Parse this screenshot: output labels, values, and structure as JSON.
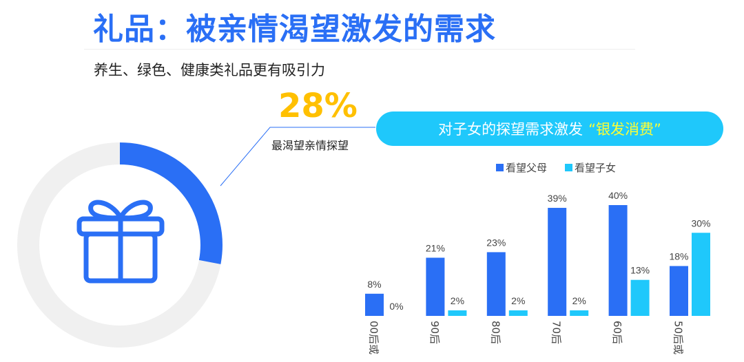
{
  "header": {
    "title": "礼品：被亲情渴望激发的需求",
    "subtitle": "养生、绿色、健康类礼品更有吸引力"
  },
  "donut": {
    "value_percent": 28,
    "value_label": "28%",
    "caption": "最渴望亲情探望",
    "icon": "gift-icon",
    "colors": {
      "fill": "#2a6ff5",
      "track": "#f0f0f0",
      "value_text": "#ffc000"
    }
  },
  "banner": {
    "text": "对子女的探望需求激发",
    "highlight": "“银发消费”",
    "colors": {
      "background": "#1fc8fb",
      "highlight": "#ffff33"
    }
  },
  "chart_data": {
    "type": "bar",
    "categories": [
      "00后或",
      "90后",
      "80后",
      "70后",
      "60后",
      "50后或"
    ],
    "series": [
      {
        "name": "看望父母",
        "color": "#2a6ff5",
        "values": [
          8,
          21,
          23,
          39,
          40,
          18
        ],
        "labels": [
          "8%",
          "21%",
          "23%",
          "39%",
          "40%",
          "18%"
        ]
      },
      {
        "name": "看望子女",
        "color": "#1fc8fb",
        "values": [
          0,
          2,
          2,
          2,
          13,
          30
        ],
        "labels": [
          "0%",
          "2%",
          "2%",
          "2%",
          "13%",
          "30%"
        ]
      }
    ],
    "ylim": [
      0,
      40
    ],
    "grid": false,
    "legend": "top",
    "xlabel": "",
    "ylabel": ""
  }
}
